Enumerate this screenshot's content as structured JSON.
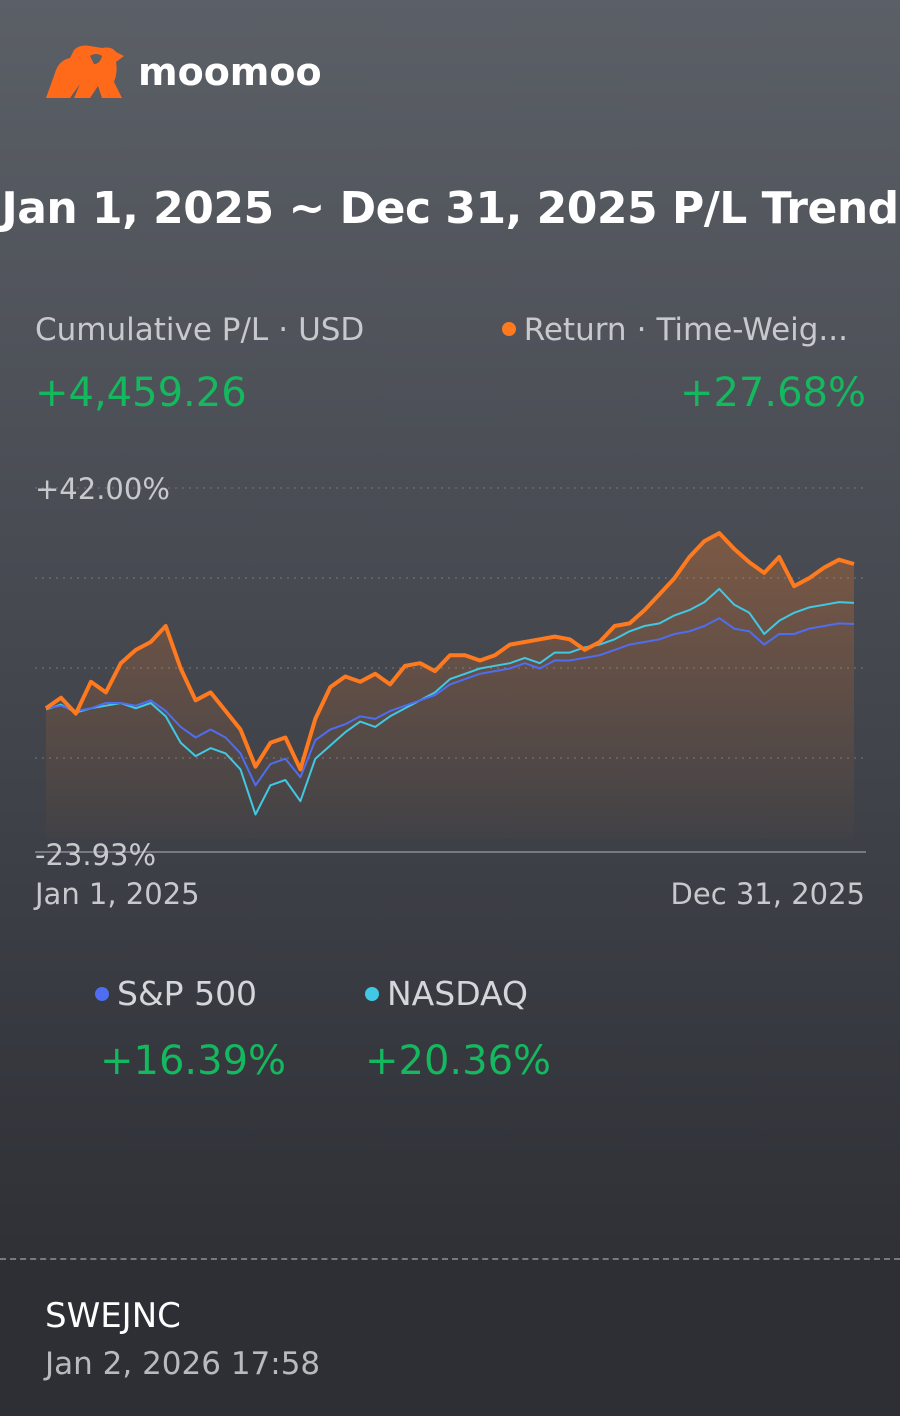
{
  "brand": {
    "name": "moomoo",
    "logo_icon": "moomoo-bull-icon",
    "logo_color": "#ff6a1a"
  },
  "title": "Jan 1, 2025 ~ Dec 31, 2025 P/L Trend",
  "summary": {
    "pl_label": "Cumulative P/L",
    "pl_separator": "·",
    "currency": "USD",
    "pl_value": "+4,459.26",
    "return_label": "Return",
    "return_separator": "·",
    "return_method": "Time-Weig...",
    "return_value": "+27.68%",
    "positive_color": "#14b85e"
  },
  "legend": [
    {
      "name": "S&P 500",
      "value": "+16.39%",
      "color": "#4f6df0"
    },
    {
      "name": "NASDAQ",
      "value": "+20.36%",
      "color": "#40c8e4"
    }
  ],
  "footer": {
    "username": "SWEJNC",
    "timestamp": "Jan 2, 2026 17:58"
  },
  "chart_data": {
    "type": "line",
    "ymax_label": "+42.00%",
    "ymin_label": "-23.93%",
    "x_start_label": "Jan 1, 2025",
    "x_end_label": "Dec 31, 2025",
    "ylim": [
      -23.93,
      42.0
    ],
    "x": [
      "Jan 1, 2025",
      "Jan 8",
      "Jan 15",
      "Jan 22",
      "Jan 29",
      "Feb 5",
      "Feb 12",
      "Feb 19",
      "Feb 26",
      "Mar 5",
      "Mar 12",
      "Mar 19",
      "Mar 26",
      "Apr 2",
      "Apr 4",
      "Apr 8",
      "Apr 9",
      "Apr 16",
      "Apr 23",
      "Apr 30",
      "May 7",
      "May 14",
      "May 21",
      "May 28",
      "Jun 4",
      "Jun 11",
      "Jun 18",
      "Jun 25",
      "Jul 2",
      "Jul 9",
      "Jul 16",
      "Jul 23",
      "Jul 30",
      "Aug 6",
      "Aug 13",
      "Aug 20",
      "Aug 27",
      "Sep 3",
      "Sep 10",
      "Sep 17",
      "Sep 24",
      "Oct 1",
      "Oct 8",
      "Oct 15",
      "Oct 22",
      "Oct 29",
      "Nov 5",
      "Nov 12",
      "Nov 19",
      "Nov 26",
      "Dec 3",
      "Dec 10",
      "Dec 17",
      "Dec 24",
      "Dec 31, 2025"
    ],
    "series": [
      {
        "name": "Return",
        "color": "#ff7a1f",
        "values": [
          0.5,
          2.5,
          -0.5,
          5.5,
          3.5,
          9.0,
          11.5,
          13.0,
          16.0,
          8.0,
          2.0,
          3.5,
          0.0,
          -3.5,
          -10.5,
          -6.0,
          -5.0,
          -11.0,
          -1.5,
          4.5,
          6.5,
          5.5,
          7.0,
          5.0,
          8.5,
          9.0,
          7.5,
          10.5,
          10.5,
          9.5,
          10.5,
          12.5,
          13.0,
          13.5,
          14.0,
          13.5,
          11.5,
          13.0,
          16.0,
          16.5,
          19.0,
          22.0,
          25.0,
          29.0,
          32.0,
          33.5,
          30.5,
          28.0,
          26.0,
          29.0,
          23.5,
          25.0,
          27.0,
          28.5,
          27.68
        ]
      },
      {
        "name": "S&P 500",
        "color": "#4f6df0",
        "values": [
          0.5,
          1.0,
          0.0,
          0.5,
          1.5,
          1.5,
          1.0,
          2.0,
          0.0,
          -3.0,
          -5.0,
          -3.5,
          -5.0,
          -8.0,
          -14.0,
          -10.0,
          -9.0,
          -12.5,
          -5.5,
          -3.5,
          -2.5,
          -1.0,
          -1.5,
          0.0,
          1.0,
          2.0,
          3.0,
          5.0,
          6.0,
          7.0,
          7.5,
          8.0,
          9.0,
          8.0,
          9.5,
          9.5,
          10.0,
          10.5,
          11.5,
          12.5,
          13.0,
          13.5,
          14.5,
          15.0,
          16.0,
          17.5,
          15.5,
          15.0,
          12.5,
          14.5,
          14.5,
          15.5,
          16.0,
          16.5,
          16.39
        ]
      },
      {
        "name": "NASDAQ",
        "color": "#40c8e4",
        "values": [
          0.3,
          1.2,
          -0.3,
          0.5,
          1.0,
          1.5,
          0.5,
          1.5,
          -1.0,
          -6.0,
          -8.5,
          -7.0,
          -8.0,
          -11.0,
          -19.5,
          -14.0,
          -13.0,
          -17.0,
          -9.0,
          -6.5,
          -4.0,
          -2.0,
          -3.0,
          -1.0,
          0.5,
          2.0,
          3.5,
          6.0,
          7.0,
          8.0,
          8.5,
          9.0,
          10.0,
          9.0,
          11.0,
          11.0,
          12.0,
          12.5,
          13.5,
          15.0,
          16.0,
          16.5,
          18.0,
          19.0,
          20.5,
          23.0,
          20.0,
          18.5,
          14.5,
          17.0,
          18.5,
          19.5,
          20.0,
          20.5,
          20.36
        ]
      }
    ]
  }
}
